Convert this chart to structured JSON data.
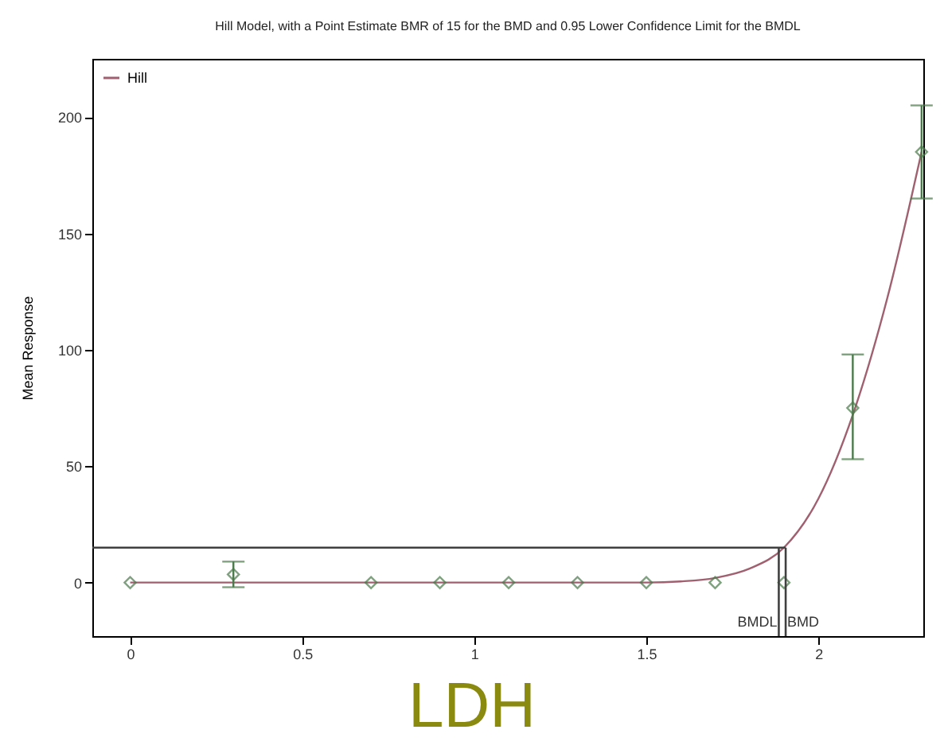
{
  "chart_data": {
    "type": "scatter",
    "title": "Hill Model, with a Point Estimate BMR of 15 for the BMD and 0.95 Lower Confidence Limit for the BMDL",
    "ylabel": "Mean Response",
    "annotations": [
      "LDH"
    ],
    "xlim": [
      -0.11,
      2.305
    ],
    "ylim": [
      -23,
      225
    ],
    "xticks": [
      0,
      0.5,
      1,
      1.5,
      2
    ],
    "yticks": [
      0,
      50,
      100,
      150,
      200
    ],
    "grid": false,
    "legend": "top left",
    "series": [
      {
        "name": "Hill",
        "type": "line",
        "color": "#a06070",
        "marker": "none",
        "line_style": "solid",
        "x": [
          0,
          0.3,
          0.7,
          0.9,
          1.1,
          1.3,
          1.5,
          1.6,
          1.7,
          1.8,
          1.9,
          2.0,
          2.1,
          2.2,
          2.3
        ],
        "values": [
          0,
          0,
          0,
          0,
          0,
          0,
          0,
          0.5,
          2,
          6,
          15,
          36,
          72,
          122,
          185
        ]
      },
      {
        "color": "#4a7a4a",
        "marker": "diamond",
        "x": [
          0,
          0.3,
          0.7,
          0.9,
          1.1,
          1.3,
          1.5,
          1.7,
          1.9,
          2.1,
          2.3
        ],
        "values": [
          0,
          3.5,
          0,
          0,
          0,
          0,
          0,
          0,
          0,
          75,
          185
        ],
        "errors": [
          null,
          [
            -2,
            9
          ],
          null,
          null,
          null,
          null,
          null,
          null,
          null,
          [
            53,
            98
          ],
          [
            165,
            205
          ]
        ]
      }
    ],
    "ref_lines": [
      {
        "axis": "y",
        "value": 15,
        "label": null,
        "color": "#404040"
      },
      {
        "axis": "x",
        "value": 1.885,
        "label": "BMDL",
        "color": "#404040"
      },
      {
        "axis": "x",
        "value": 1.905,
        "label": "BMD",
        "color": "#404040"
      }
    ]
  }
}
